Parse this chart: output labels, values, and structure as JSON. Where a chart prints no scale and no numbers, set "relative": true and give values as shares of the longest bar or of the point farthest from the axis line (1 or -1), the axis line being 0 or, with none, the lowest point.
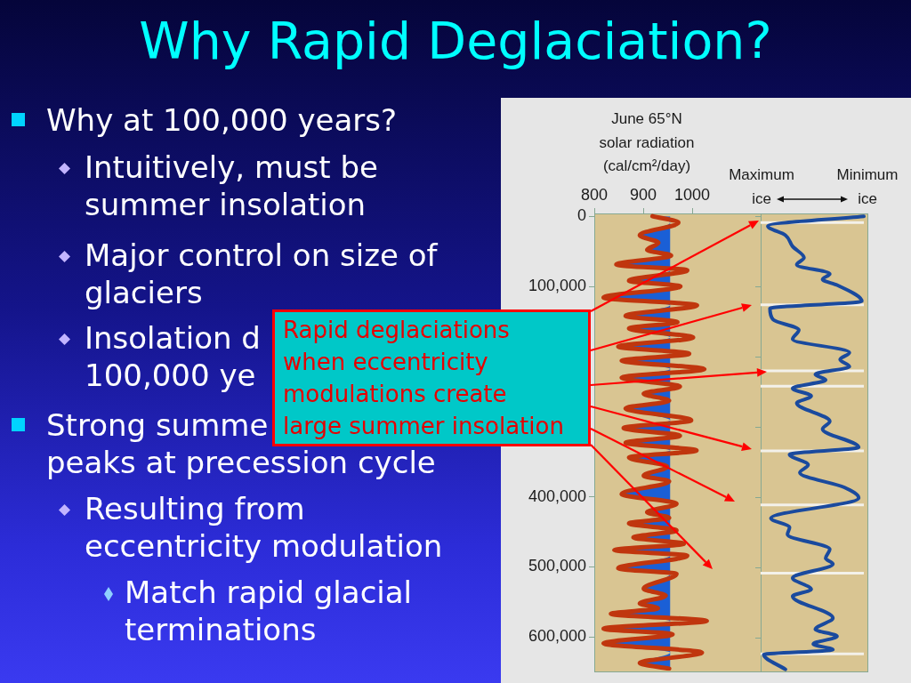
{
  "chart_data": [
    {
      "type": "other",
      "title": "Why Rapid Deglaciation?",
      "annotations": [
        "Why at 100,000 years?",
        "Intuitively, must be\nsummer insolation",
        "Major control on size of\nglaciers",
        "Insolation d\n100,000 ye",
        "Strong summe",
        "peaks at precession cycle",
        "Resulting from\neccentricity modulation",
        "Match rapid glacial\nterminations",
        "Rapid deglaciations\nwhen eccentricity\nmodulations create\nlarge summer insolation"
      ]
    },
    {
      "type": "line",
      "xlabel": "June 65°N\nsolar radiation\n(cal/cm²/day)",
      "orientation": "horizontal",
      "color": "#c0360e",
      "x": [
        0,
        9000,
        27000,
        38000,
        48000,
        56000,
        69000,
        77000,
        92000,
        100000,
        116000,
        127000,
        142000,
        151000,
        160000,
        173000,
        186000,
        196000,
        206000,
        218000,
        230000,
        243000,
        253000,
        263000,
        274000,
        291000,
        302000,
        313000,
        323000,
        334000,
        344000,
        357000,
        370000,
        378000,
        396000,
        410000,
        422000,
        430000,
        438000,
        448000,
        458000,
        467000,
        476000,
        484000,
        502000,
        510000,
        531000,
        541000,
        552000,
        559000,
        567000,
        577000,
        588000,
        596000,
        609000,
        622000,
        637000,
        645000
      ],
      "values": [
        919,
        972,
        893,
        931,
        908,
        957,
        845,
        990,
        871,
        976,
        819,
        1010,
        864,
        970,
        871,
        1002,
        849,
        994,
        856,
        1025,
        856,
        975,
        901,
        953,
        864,
        998,
        860,
        975,
        864,
        1009,
        871,
        949,
        901,
        953,
        856,
        968,
        908,
        953,
        871,
        968,
        880,
        983,
        841,
        990,
        849,
        968,
        901,
        946,
        893,
        930,
        834,
        1030,
        819,
        960,
        819,
        1020,
        893,
        953
      ],
      "lower": [
        919,
        955,
        893,
        931,
        908,
        955,
        845,
        955,
        871,
        955,
        819,
        955,
        864,
        955,
        871,
        955,
        849,
        955,
        856,
        955,
        856,
        955,
        901,
        953,
        864,
        955,
        860,
        955,
        864,
        955,
        871,
        949,
        901,
        953,
        856,
        955,
        908,
        953,
        871,
        955,
        880,
        955,
        841,
        955,
        849,
        955,
        901,
        946,
        893,
        930,
        834,
        955,
        819,
        955,
        819,
        955,
        893,
        953
      ],
      "upper": [
        955,
        955,
        955,
        955,
        955,
        955,
        955,
        955,
        955,
        955,
        955,
        955,
        955,
        955,
        955,
        955,
        955,
        955,
        955,
        955,
        955,
        955,
        955,
        955,
        955,
        955,
        955,
        955,
        955,
        955,
        955,
        955,
        955,
        955,
        955,
        955,
        955,
        955,
        955,
        955,
        955,
        955,
        955,
        955,
        955,
        955,
        955,
        955,
        955,
        955,
        955,
        955,
        955,
        955,
        955,
        955,
        955,
        955
      ],
      "xlim": [
        800,
        1140
      ],
      "xticks": [
        800,
        900,
        1000
      ],
      "ylim": [
        648000,
        -4000
      ],
      "yticks": [
        0,
        {
          "value": 100000,
          "label": "100,000"
        },
        {
          "value": 400000,
          "label": "400,000"
        },
        {
          "value": 500000,
          "label": "500,000"
        },
        {
          "value": 600000,
          "label": "600,000"
        }
      ]
    },
    {
      "type": "line",
      "annotations": [
        "Maximum\nice",
        "Minimum\nice"
      ],
      "orientation": "horizontal",
      "relative": true,
      "color": "#1a4a9e",
      "x": [
        0,
        14000,
        27000,
        43000,
        59000,
        69000,
        82000,
        90000,
        98000,
        121000,
        131000,
        147000,
        162000,
        175000,
        194000,
        204000,
        214000,
        225000,
        233000,
        245000,
        256000,
        266000,
        292000,
        303000,
        329000,
        339000,
        354000,
        365000,
        386000,
        401000,
        430000,
        443000,
        453000,
        474000,
        487000,
        495000,
        515000,
        531000,
        541000,
        572000,
        588000,
        598000,
        609000,
        617000,
        624000,
        645000
      ],
      "values": [
        1,
        0.07,
        0.24,
        0.31,
        0.42,
        0.35,
        0.67,
        0.6,
        0.74,
        0.98,
        0.09,
        0.12,
        0.37,
        0.31,
        0.86,
        0.77,
        0.86,
        0.53,
        0.63,
        0.31,
        0.49,
        0.35,
        0.67,
        0.6,
        0.95,
        0.28,
        0.46,
        0.38,
        0.81,
        0.95,
        0.1,
        0.28,
        0.26,
        0.67,
        0.63,
        0.7,
        0.31,
        0.49,
        0.31,
        0.7,
        0.53,
        0.74,
        0.51,
        0.7,
        0.03,
        0.24
      ],
      "ylim": [
        648000,
        -4000
      ],
      "yticks": [
        0,
        100000,
        200000,
        300000,
        400000,
        500000,
        600000
      ],
      "tick_labels": false,
      "ref_lines": [
        {
          "axis": "y",
          "value": 9000,
          "color": "#f3f1ea"
        },
        {
          "axis": "y",
          "value": 126000,
          "color": "#f3f1ea"
        },
        {
          "axis": "y",
          "value": 220000,
          "color": "#f3f1ea"
        },
        {
          "axis": "y",
          "value": 242000,
          "color": "#f3f1ea"
        },
        {
          "axis": "y",
          "value": 334000,
          "color": "#f3f1ea"
        },
        {
          "axis": "y",
          "value": 411000,
          "color": "#f3f1ea"
        },
        {
          "axis": "y",
          "value": 508000,
          "color": "#f3f1ea"
        },
        {
          "axis": "y",
          "value": 623000,
          "color": "#f3f1ea"
        }
      ]
    }
  ]
}
